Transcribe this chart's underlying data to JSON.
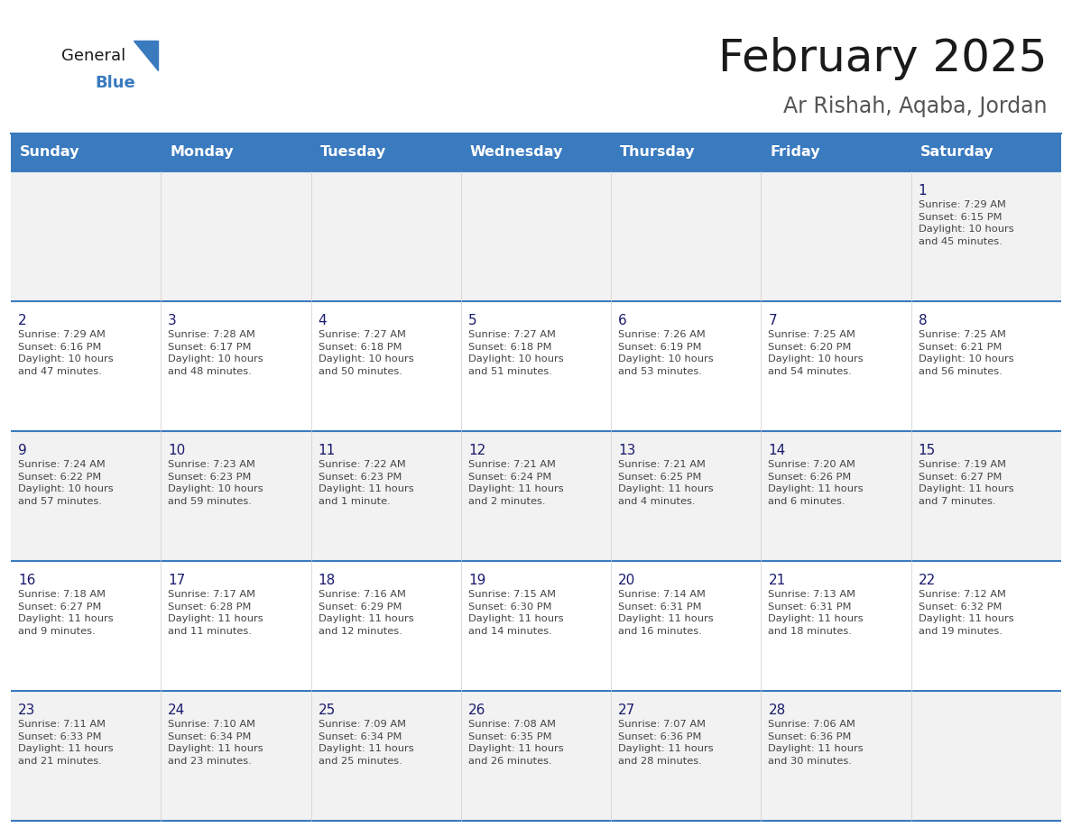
{
  "title": "February 2025",
  "subtitle": "Ar Rishah, Aqaba, Jordan",
  "days_of_week": [
    "Sunday",
    "Monday",
    "Tuesday",
    "Wednesday",
    "Thursday",
    "Friday",
    "Saturday"
  ],
  "header_bg": "#3a7abf",
  "header_text": "#ffffff",
  "row_bg_odd": "#f2f2f2",
  "row_bg_even": "#ffffff",
  "cell_text_color": "#444444",
  "day_num_color": "#1a1a6e",
  "title_color": "#1a1a1a",
  "subtitle_color": "#555555",
  "line_color": "#3a7abf",
  "logo_general_color": "#1a1a1a",
  "logo_blue_color": "#3a7abf",
  "logo_triangle_color": "#3a7abf",
  "calendar_data": [
    [
      {
        "day": "",
        "info": ""
      },
      {
        "day": "",
        "info": ""
      },
      {
        "day": "",
        "info": ""
      },
      {
        "day": "",
        "info": ""
      },
      {
        "day": "",
        "info": ""
      },
      {
        "day": "",
        "info": ""
      },
      {
        "day": "1",
        "info": "Sunrise: 7:29 AM\nSunset: 6:15 PM\nDaylight: 10 hours\nand 45 minutes."
      }
    ],
    [
      {
        "day": "2",
        "info": "Sunrise: 7:29 AM\nSunset: 6:16 PM\nDaylight: 10 hours\nand 47 minutes."
      },
      {
        "day": "3",
        "info": "Sunrise: 7:28 AM\nSunset: 6:17 PM\nDaylight: 10 hours\nand 48 minutes."
      },
      {
        "day": "4",
        "info": "Sunrise: 7:27 AM\nSunset: 6:18 PM\nDaylight: 10 hours\nand 50 minutes."
      },
      {
        "day": "5",
        "info": "Sunrise: 7:27 AM\nSunset: 6:18 PM\nDaylight: 10 hours\nand 51 minutes."
      },
      {
        "day": "6",
        "info": "Sunrise: 7:26 AM\nSunset: 6:19 PM\nDaylight: 10 hours\nand 53 minutes."
      },
      {
        "day": "7",
        "info": "Sunrise: 7:25 AM\nSunset: 6:20 PM\nDaylight: 10 hours\nand 54 minutes."
      },
      {
        "day": "8",
        "info": "Sunrise: 7:25 AM\nSunset: 6:21 PM\nDaylight: 10 hours\nand 56 minutes."
      }
    ],
    [
      {
        "day": "9",
        "info": "Sunrise: 7:24 AM\nSunset: 6:22 PM\nDaylight: 10 hours\nand 57 minutes."
      },
      {
        "day": "10",
        "info": "Sunrise: 7:23 AM\nSunset: 6:23 PM\nDaylight: 10 hours\nand 59 minutes."
      },
      {
        "day": "11",
        "info": "Sunrise: 7:22 AM\nSunset: 6:23 PM\nDaylight: 11 hours\nand 1 minute."
      },
      {
        "day": "12",
        "info": "Sunrise: 7:21 AM\nSunset: 6:24 PM\nDaylight: 11 hours\nand 2 minutes."
      },
      {
        "day": "13",
        "info": "Sunrise: 7:21 AM\nSunset: 6:25 PM\nDaylight: 11 hours\nand 4 minutes."
      },
      {
        "day": "14",
        "info": "Sunrise: 7:20 AM\nSunset: 6:26 PM\nDaylight: 11 hours\nand 6 minutes."
      },
      {
        "day": "15",
        "info": "Sunrise: 7:19 AM\nSunset: 6:27 PM\nDaylight: 11 hours\nand 7 minutes."
      }
    ],
    [
      {
        "day": "16",
        "info": "Sunrise: 7:18 AM\nSunset: 6:27 PM\nDaylight: 11 hours\nand 9 minutes."
      },
      {
        "day": "17",
        "info": "Sunrise: 7:17 AM\nSunset: 6:28 PM\nDaylight: 11 hours\nand 11 minutes."
      },
      {
        "day": "18",
        "info": "Sunrise: 7:16 AM\nSunset: 6:29 PM\nDaylight: 11 hours\nand 12 minutes."
      },
      {
        "day": "19",
        "info": "Sunrise: 7:15 AM\nSunset: 6:30 PM\nDaylight: 11 hours\nand 14 minutes."
      },
      {
        "day": "20",
        "info": "Sunrise: 7:14 AM\nSunset: 6:31 PM\nDaylight: 11 hours\nand 16 minutes."
      },
      {
        "day": "21",
        "info": "Sunrise: 7:13 AM\nSunset: 6:31 PM\nDaylight: 11 hours\nand 18 minutes."
      },
      {
        "day": "22",
        "info": "Sunrise: 7:12 AM\nSunset: 6:32 PM\nDaylight: 11 hours\nand 19 minutes."
      }
    ],
    [
      {
        "day": "23",
        "info": "Sunrise: 7:11 AM\nSunset: 6:33 PM\nDaylight: 11 hours\nand 21 minutes."
      },
      {
        "day": "24",
        "info": "Sunrise: 7:10 AM\nSunset: 6:34 PM\nDaylight: 11 hours\nand 23 minutes."
      },
      {
        "day": "25",
        "info": "Sunrise: 7:09 AM\nSunset: 6:34 PM\nDaylight: 11 hours\nand 25 minutes."
      },
      {
        "day": "26",
        "info": "Sunrise: 7:08 AM\nSunset: 6:35 PM\nDaylight: 11 hours\nand 26 minutes."
      },
      {
        "day": "27",
        "info": "Sunrise: 7:07 AM\nSunset: 6:36 PM\nDaylight: 11 hours\nand 28 minutes."
      },
      {
        "day": "28",
        "info": "Sunrise: 7:06 AM\nSunset: 6:36 PM\nDaylight: 11 hours\nand 30 minutes."
      },
      {
        "day": "",
        "info": ""
      }
    ]
  ]
}
